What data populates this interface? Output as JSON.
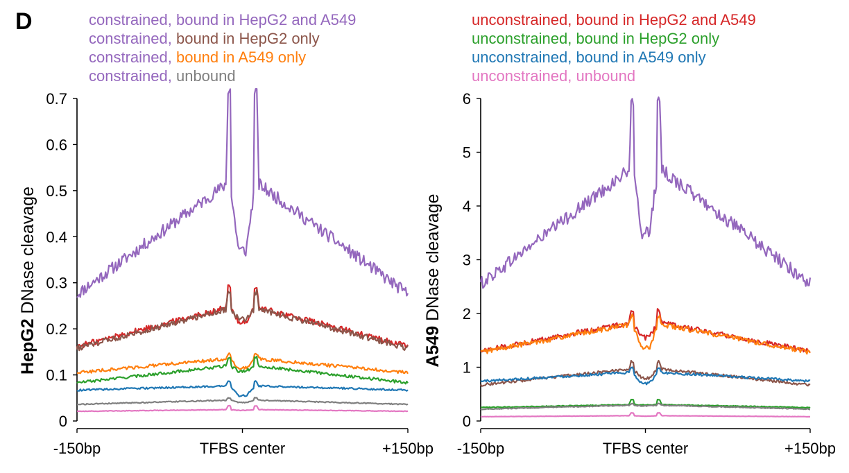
{
  "figure": {
    "panel_label": "D",
    "legend_left": [
      {
        "prefix": "constrained,",
        "suffix": " bound in HepG2 and A549",
        "color": "#9467bd"
      },
      {
        "prefix": "constrained,",
        "suffix": " bound in HepG2 only",
        "color": "#8c564b"
      },
      {
        "prefix": "constrained,",
        "suffix": " bound in A549 only",
        "color": "#ff7f0e"
      },
      {
        "prefix": "constrained,",
        "suffix": " unbound",
        "color": "#7f7f7f"
      }
    ],
    "legend_right": [
      {
        "prefix": "unconstrained,",
        "suffix": " bound in HepG2 and A549",
        "color": "#d62728"
      },
      {
        "prefix": "unconstrained,",
        "suffix": " bound in HepG2 only",
        "color": "#2ca02c"
      },
      {
        "prefix": "unconstrained,",
        "suffix": " bound in A549 only",
        "color": "#1f77b4"
      },
      {
        "prefix": "unconstrained,",
        "suffix": " unbound",
        "color": "#e377c2"
      }
    ]
  },
  "chart_data": [
    {
      "type": "line",
      "ylabel_bold": "HepG2",
      "ylabel_rest": " DNase cleavage",
      "x_ticks": [
        -150,
        0,
        150
      ],
      "x_tick_labels": [
        "-150bp",
        "TFBS center",
        "+150bp"
      ],
      "xlim": [
        -150,
        150
      ],
      "ylim": [
        0,
        0.7
      ],
      "y_ticks": [
        0,
        0.1,
        0.2,
        0.3,
        0.4,
        0.5,
        0.6,
        0.7
      ],
      "y_tick_labels": [
        "0",
        "0.1",
        "0.2",
        "0.3",
        "0.4",
        "0.5",
        "0.6",
        "0.7"
      ],
      "grid": false,
      "series": [
        {
          "color": "#9467bd",
          "edge": 0.275,
          "near": 0.54,
          "dip": 0.37,
          "spike": 0.72
        },
        {
          "color": "#d62728",
          "edge": 0.162,
          "near": 0.255,
          "dip": 0.215,
          "spike": 0.29
        },
        {
          "color": "#8c564b",
          "edge": 0.158,
          "near": 0.252,
          "dip": 0.22,
          "spike": 0.28
        },
        {
          "color": "#ff7f0e",
          "edge": 0.105,
          "near": 0.138,
          "dip": 0.115,
          "spike": 0.145
        },
        {
          "color": "#2ca02c",
          "edge": 0.083,
          "near": 0.123,
          "dip": 0.108,
          "spike": 0.138
        },
        {
          "color": "#1f77b4",
          "edge": 0.067,
          "near": 0.077,
          "dip": 0.055,
          "spike": 0.085
        },
        {
          "color": "#7f7f7f",
          "edge": 0.036,
          "near": 0.046,
          "dip": 0.04,
          "spike": 0.05
        },
        {
          "color": "#e377c2",
          "edge": 0.021,
          "near": 0.025,
          "dip": 0.023,
          "spike": 0.033
        }
      ]
    },
    {
      "type": "line",
      "ylabel_bold": "A549",
      "ylabel_rest": " DNase cleavage",
      "x_ticks": [
        -150,
        0,
        150
      ],
      "x_tick_labels": [
        "-150bp",
        "TFBS center",
        "+150bp"
      ],
      "xlim": [
        -150,
        150
      ],
      "ylim": [
        0,
        6
      ],
      "y_ticks": [
        0,
        1,
        2,
        3,
        4,
        5,
        6
      ],
      "y_tick_labels": [
        "0",
        "1",
        "2",
        "3",
        "4",
        "5",
        "6"
      ],
      "grid": false,
      "series": [
        {
          "color": "#9467bd",
          "edge": 2.55,
          "near": 4.9,
          "dip": 3.5,
          "spike": 5.9
        },
        {
          "color": "#d62728",
          "edge": 1.3,
          "near": 1.88,
          "dip": 1.55,
          "spike": 2.05
        },
        {
          "color": "#ff7f0e",
          "edge": 1.28,
          "near": 1.85,
          "dip": 1.35,
          "spike": 1.95
        },
        {
          "color": "#8c564b",
          "edge": 0.67,
          "near": 1.0,
          "dip": 0.8,
          "spike": 1.1
        },
        {
          "color": "#1f77b4",
          "edge": 0.74,
          "near": 0.92,
          "dip": 0.7,
          "spike": 0.98
        },
        {
          "color": "#2ca02c",
          "edge": 0.25,
          "near": 0.31,
          "dip": 0.3,
          "spike": 0.4
        },
        {
          "color": "#7f7f7f",
          "edge": 0.22,
          "near": 0.3,
          "dip": 0.28,
          "spike": 0.32
        },
        {
          "color": "#e377c2",
          "edge": 0.08,
          "near": 0.1,
          "dip": 0.09,
          "spike": 0.15
        }
      ]
    }
  ]
}
